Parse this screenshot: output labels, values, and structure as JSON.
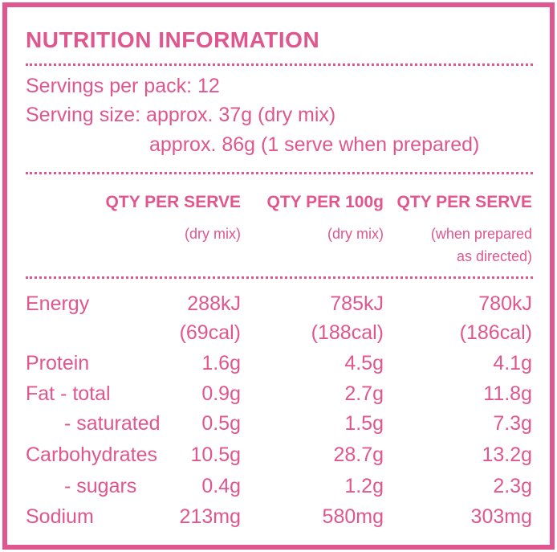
{
  "title": "NUTRITION INFORMATION",
  "servings": [
    "Servings per pack: 12",
    "Serving size: approx. 37g (dry mix)",
    "approx. 86g (1 serve when prepared)"
  ],
  "columns": [
    {
      "heading": "QTY PER SERVE",
      "note": [
        "(dry mix)"
      ]
    },
    {
      "heading": "QTY PER 100g",
      "note": [
        "(dry mix)"
      ]
    },
    {
      "heading": "QTY PER SERVE",
      "note": [
        "(when prepared",
        "as directed)"
      ]
    }
  ],
  "rows": [
    {
      "label": "Energy",
      "values": [
        "288kJ",
        "785kJ",
        "780kJ"
      ],
      "sub": [
        "(69cal)",
        "(188cal)",
        "(186cal)"
      ]
    },
    {
      "label": "Protein",
      "values": [
        "1.6g",
        "4.5g",
        "4.1g"
      ]
    },
    {
      "label": "Fat - total",
      "values": [
        "0.9g",
        "2.7g",
        "11.8g"
      ]
    },
    {
      "label": "- saturated",
      "values": [
        "0.5g",
        "1.5g",
        "7.3g"
      ]
    },
    {
      "label": "Carbohydrates",
      "values": [
        "10.5g",
        "28.7g",
        "13.2g"
      ]
    },
    {
      "label": "- sugars",
      "values": [
        "0.4g",
        "1.2g",
        "2.3g"
      ]
    },
    {
      "label": "Sodium",
      "values": [
        "213mg",
        "580mg",
        "303mg"
      ]
    }
  ]
}
